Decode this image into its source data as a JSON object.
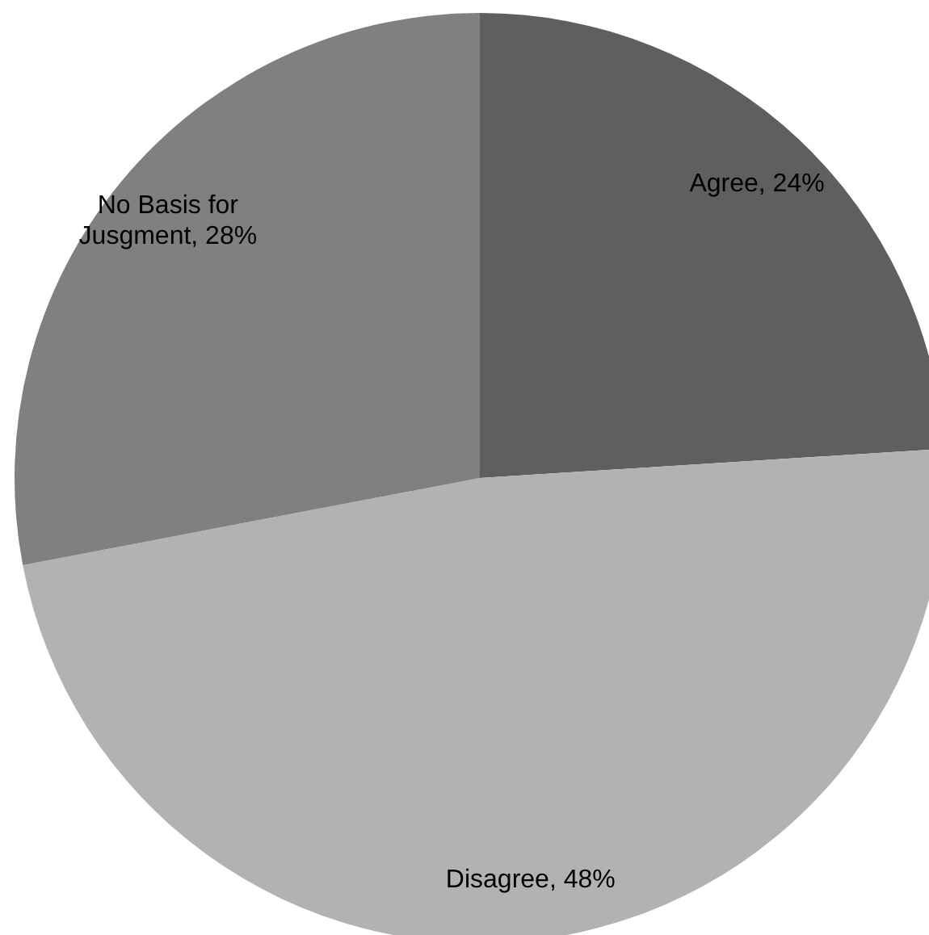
{
  "chart_data": {
    "type": "pie",
    "categories": [
      "Agree",
      "Disagree",
      "No Basis for Jusgment"
    ],
    "values": [
      24,
      48,
      28
    ],
    "value_labels": [
      "24%",
      "48%",
      "28%"
    ],
    "colors": [
      "#5f5f5f",
      "#b2b2b2",
      "#808080"
    ],
    "legend": false
  }
}
